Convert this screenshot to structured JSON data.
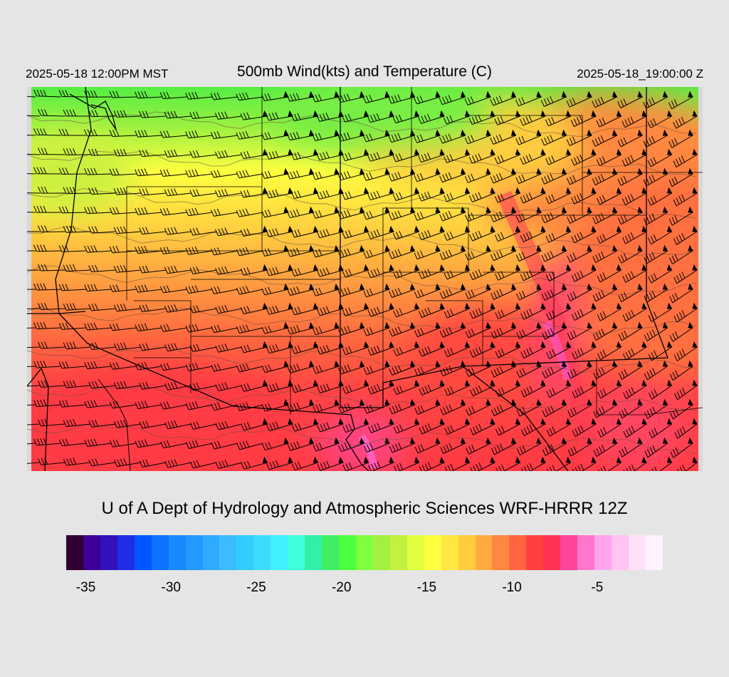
{
  "header": {
    "local_time": "2025-05-18 12:00PM MST",
    "title": "500mb Wind(kts) and Temperature (C)",
    "valid_time": "2025-05-18_19:00:00 Z"
  },
  "credit": "U of A Dept of Hydrology and Atmospheric Sciences WRF-HRRR 12Z",
  "colorbar": {
    "colors": [
      "#330033",
      "#3d0099",
      "#3311bb",
      "#1f2ee6",
      "#0055ff",
      "#0d73ff",
      "#1a88ff",
      "#2499ff",
      "#2eaaff",
      "#3dbbff",
      "#33ccff",
      "#3ddcff",
      "#40f2ff",
      "#40ffdd",
      "#33f0a8",
      "#40ee66",
      "#4dff40",
      "#80ff40",
      "#a3f040",
      "#c4f040",
      "#e0ff40",
      "#ffff40",
      "#ffe640",
      "#ffcc40",
      "#ffaa40",
      "#ff8840",
      "#ff6640",
      "#ff4040",
      "#ff3355",
      "#ff4499",
      "#ff77cc",
      "#ffa5ee",
      "#ffc4f0",
      "#ffe0f7",
      "#fff2fc"
    ],
    "ticks": [
      {
        "label": "-35",
        "value": -35
      },
      {
        "label": "-30",
        "value": -30
      },
      {
        "label": "-25",
        "value": -25
      },
      {
        "label": "-20",
        "value": -20
      },
      {
        "label": "-15",
        "value": -15
      },
      {
        "label": "-10",
        "value": -10
      },
      {
        "label": "-5",
        "value": -5
      }
    ],
    "min": -36,
    "max": -1
  }
}
